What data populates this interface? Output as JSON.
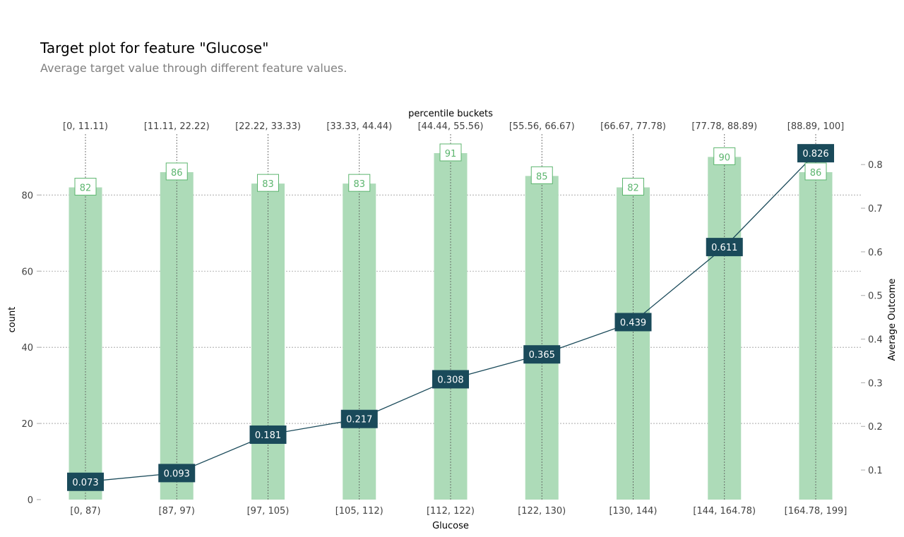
{
  "title": "Target plot for feature \"Glucose\"",
  "subtitle": "Average target value through different feature values.",
  "chart_data": {
    "type": "bar",
    "categories": [
      "[0, 87)",
      "[87, 97)",
      "[97, 105)",
      "[105, 112)",
      "[112, 122)",
      "[122, 130)",
      "[130, 144)",
      "[144, 164.78)",
      "[164.78, 199]"
    ],
    "percentile_buckets": [
      "[0, 11.11)",
      "[11.11, 22.22)",
      "[22.22, 33.33)",
      "[33.33, 44.44)",
      "[44.44, 55.56)",
      "[55.56, 66.67)",
      "[66.67, 77.78)",
      "[77.78, 88.89)",
      "[88.89, 100]"
    ],
    "series": [
      {
        "name": "count",
        "type": "bar",
        "axis": "left",
        "values": [
          82,
          86,
          83,
          83,
          91,
          85,
          82,
          90,
          86
        ],
        "color": "#addbb8",
        "label_color": "#5cb56e"
      },
      {
        "name": "Average Outcome",
        "type": "line",
        "axis": "right",
        "values": [
          0.073,
          0.093,
          0.181,
          0.217,
          0.308,
          0.365,
          0.439,
          0.611,
          0.826
        ],
        "color": "#1a4a5a"
      }
    ],
    "xlabel": "Glucose",
    "x2label": "percentile buckets",
    "ylabel": "count",
    "y2label": "Average Outcome",
    "ylim": [
      0,
      96
    ],
    "y2lim": [
      0.0322,
      0.8699
    ],
    "yticks": [
      0,
      20,
      40,
      60,
      80
    ],
    "y2ticks": [
      0.1,
      0.2,
      0.3,
      0.4,
      0.5,
      0.6,
      0.7,
      0.8
    ],
    "grid": true,
    "grid_color": "#9e9e9e",
    "tick_color": "#424242"
  }
}
